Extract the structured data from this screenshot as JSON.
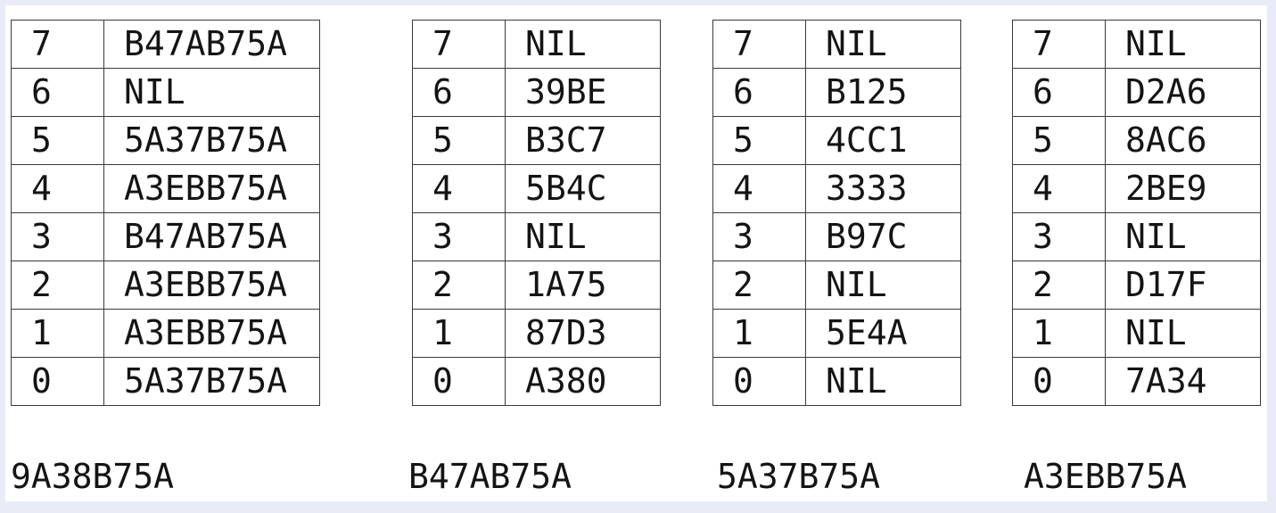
{
  "tables": [
    {
      "caption": "9A38B75A",
      "rows": [
        {
          "index": "7",
          "value": "B47AB75A"
        },
        {
          "index": "6",
          "value": "NIL"
        },
        {
          "index": "5",
          "value": "5A37B75A"
        },
        {
          "index": "4",
          "value": "A3EBB75A"
        },
        {
          "index": "3",
          "value": "B47AB75A"
        },
        {
          "index": "2",
          "value": "A3EBB75A"
        },
        {
          "index": "1",
          "value": "A3EBB75A"
        },
        {
          "index": "0",
          "value": "5A37B75A"
        }
      ]
    },
    {
      "caption": "B47AB75A",
      "rows": [
        {
          "index": "7",
          "value": "NIL"
        },
        {
          "index": "6",
          "value": "39BE"
        },
        {
          "index": "5",
          "value": "B3C7"
        },
        {
          "index": "4",
          "value": "5B4C"
        },
        {
          "index": "3",
          "value": "NIL"
        },
        {
          "index": "2",
          "value": "1A75"
        },
        {
          "index": "1",
          "value": "87D3"
        },
        {
          "index": "0",
          "value": "A380"
        }
      ]
    },
    {
      "caption": "5A37B75A",
      "rows": [
        {
          "index": "7",
          "value": "NIL"
        },
        {
          "index": "6",
          "value": "B125"
        },
        {
          "index": "5",
          "value": "4CC1"
        },
        {
          "index": "4",
          "value": "3333"
        },
        {
          "index": "3",
          "value": "B97C"
        },
        {
          "index": "2",
          "value": "NIL"
        },
        {
          "index": "1",
          "value": "5E4A"
        },
        {
          "index": "0",
          "value": "NIL"
        }
      ]
    },
    {
      "caption": "A3EBB75A",
      "rows": [
        {
          "index": "7",
          "value": "NIL"
        },
        {
          "index": "6",
          "value": "D2A6"
        },
        {
          "index": "5",
          "value": "8AC6"
        },
        {
          "index": "4",
          "value": "2BE9"
        },
        {
          "index": "3",
          "value": "NIL"
        },
        {
          "index": "2",
          "value": "D17F"
        },
        {
          "index": "1",
          "value": "NIL"
        },
        {
          "index": "0",
          "value": "7A34"
        }
      ]
    }
  ]
}
